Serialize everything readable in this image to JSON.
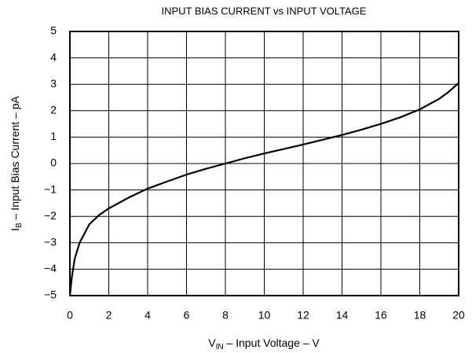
{
  "chart_data": {
    "type": "line",
    "title": "INPUT BIAS CURRENT vs INPUT VOLTAGE",
    "xlabel": {
      "symbol": "V",
      "subscript": "IN",
      "text": " – Input Voltage – V"
    },
    "ylabel": {
      "symbol": "I",
      "subscript": "B",
      "text": " – Input Bias Current – pA"
    },
    "xlim": [
      0,
      20
    ],
    "ylim": [
      -5,
      5
    ],
    "xticks": [
      0,
      2,
      4,
      6,
      8,
      10,
      12,
      14,
      16,
      18,
      20
    ],
    "yticks": [
      {
        "value": -5,
        "label": "−5"
      },
      {
        "value": -4,
        "label": "−4"
      },
      {
        "value": -3,
        "label": "−3"
      },
      {
        "value": -2,
        "label": "−2"
      },
      {
        "value": -1,
        "label": "−1"
      },
      0,
      1,
      2,
      3,
      4,
      5
    ],
    "grid": true,
    "series": [
      {
        "color": "#000000",
        "x": [
          0,
          0.1,
          0.25,
          0.5,
          1,
          1.5,
          2,
          3,
          4,
          5,
          6,
          7,
          8,
          9,
          10,
          11,
          12,
          13,
          14,
          15,
          16,
          17,
          18,
          19,
          19.5,
          20
        ],
        "values": [
          -5,
          -4.3,
          -3.6,
          -3.0,
          -2.3,
          -1.95,
          -1.7,
          -1.3,
          -0.95,
          -0.68,
          -0.42,
          -0.2,
          0,
          0.2,
          0.38,
          0.55,
          0.72,
          0.9,
          1.08,
          1.28,
          1.5,
          1.75,
          2.05,
          2.45,
          2.72,
          3.05
        ]
      }
    ]
  }
}
